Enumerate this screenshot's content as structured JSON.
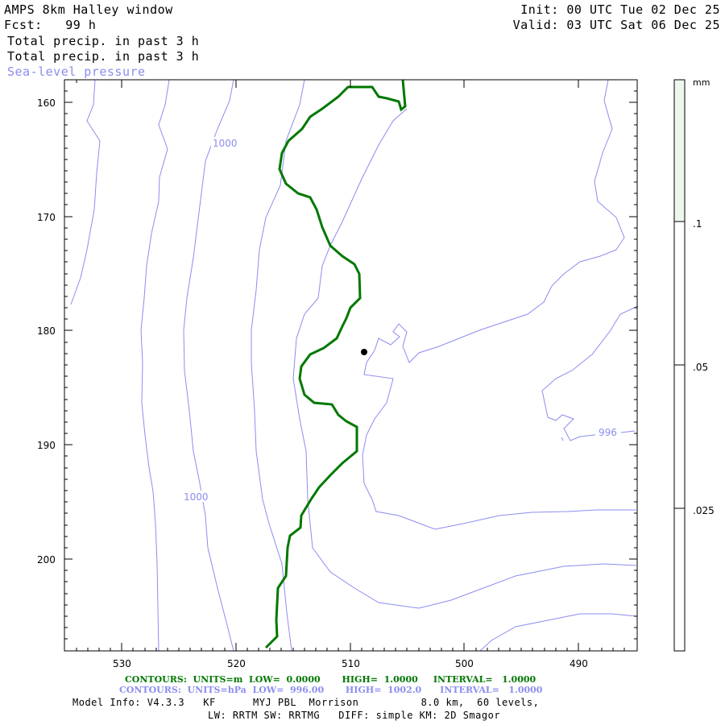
{
  "header": {
    "title": "AMPS 8km Halley window",
    "forecast": "Fcst:   99 h",
    "field1": "Total precip. in past 3 h",
    "field2": "Total precip. in past 3 h",
    "field3": "Sea-level pressure",
    "init": "Init: 00 UTC Tue 02 Dec 25",
    "valid": "Valid: 03 UTC Sat 06 Dec 25"
  },
  "map": {
    "x_ticks": [
      "530",
      "520",
      "510",
      "500",
      "490"
    ],
    "y_ticks": [
      "160",
      "170",
      "180",
      "190",
      "200"
    ],
    "contour_labels": [
      "1000",
      "1000",
      "996"
    ]
  },
  "colorbar": {
    "unit": "mm",
    "labels": [
      ".1",
      ".05",
      ".025"
    ],
    "fill_color": "#eef7ee"
  },
  "footer": {
    "contours_green": "CONTOURS:  UNITS=m  LOW=  0.0000       HIGH=  1.0000     INTERVAL=   1.0000",
    "contours_blue": "CONTOURS:  UNITS=hPa  LOW=  996.00       HIGH=  1002.0      INTERVAL=   1.0000",
    "model_info": "Model Info: V4.3.3   KF      MYJ PBL  Morrison          8.0 km,  60 levels,",
    "physics": "LW: RRTM SW: RRTMG   DIFF: simple KM: 2D Smagor"
  },
  "colors": {
    "green": "#007800",
    "blue": "#8c8cf0",
    "frame": "#000000"
  }
}
